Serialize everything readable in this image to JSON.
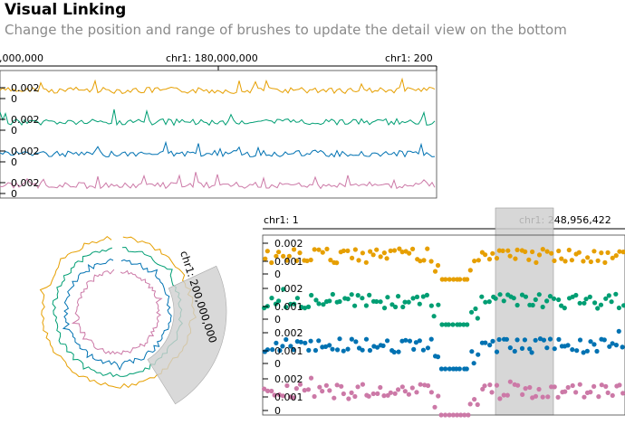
{
  "header": {
    "title": "Visual Linking",
    "subtitle": "Change the position and range of brushes to update the detail view on the bottom"
  },
  "colors": {
    "track1": "#E69F00",
    "track2": "#009E73",
    "track3": "#0072B2",
    "track4": "#CC79A7",
    "brush_fill": "#cfcfcf",
    "axis": "#000000"
  },
  "top_view": {
    "axis_labels": [
      "0,000,000",
      "chr1: 180,000,000",
      "chr1: 200"
    ],
    "tracks": [
      {
        "ytick_top": "0.002",
        "ytick_zero": "0"
      },
      {
        "ytick_top": "0.002",
        "ytick_zero": "0"
      },
      {
        "ytick_top": "0.002",
        "ytick_zero": "0"
      },
      {
        "ytick_top": "0.002",
        "ytick_zero": "0"
      }
    ]
  },
  "circular_view": {
    "brush_label": "chr1: 200,000,000"
  },
  "detail_view": {
    "axis_start": "chr1: 1",
    "axis_end": "chr1: 248,956,422",
    "tracks": [
      {
        "ytick_top": "0.002",
        "ytick_mid": "0.001",
        "ytick_zero": "0"
      },
      {
        "ytick_top": "0.002",
        "ytick_mid": "0.001",
        "ytick_zero": "0"
      },
      {
        "ytick_top": "0.002",
        "ytick_mid": "0.001",
        "ytick_zero": "0"
      },
      {
        "ytick_top": "0.002",
        "ytick_mid": "0.001",
        "ytick_zero": "0"
      }
    ]
  }
}
